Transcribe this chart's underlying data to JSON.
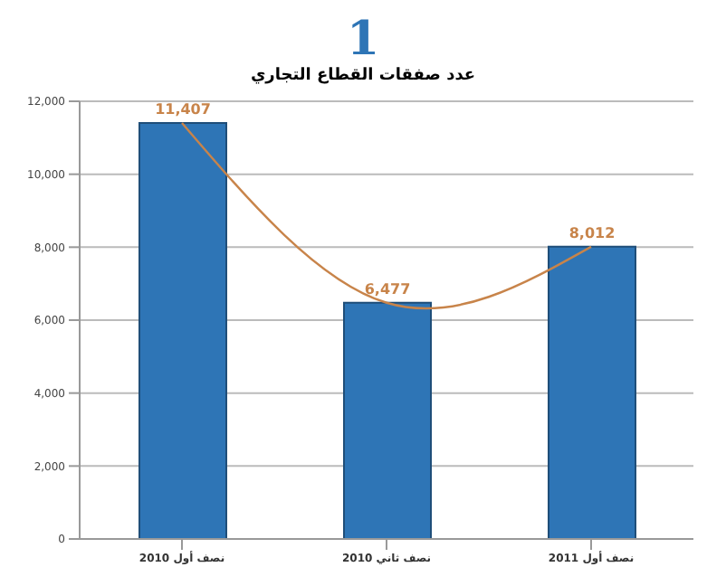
{
  "chart_data": {
    "type": "bar",
    "title": "1",
    "subtitle": "عدد صفقات القطاع التجاري",
    "categories": [
      "نصف أول 2010",
      "نصف ثاني 2010",
      "نصف أول 2011"
    ],
    "series": [
      {
        "color": "#2e75b6",
        "values": [
          11407,
          6477,
          8012
        ],
        "value_labels": [
          "11,407",
          "6,477",
          "8,012"
        ]
      },
      {
        "type": "line",
        "color": "#c8844a",
        "values": [
          11407,
          6477,
          8012
        ]
      }
    ],
    "ylim": [
      0,
      12000
    ],
    "yticks": [
      0,
      {
        "value": 2000,
        "label": "2,000"
      },
      {
        "value": 4000,
        "label": "4,000"
      },
      {
        "value": 6000,
        "label": "6,000"
      },
      {
        "value": 8000,
        "label": "8,000"
      },
      {
        "value": 10000,
        "label": "10,000"
      },
      {
        "value": 12000,
        "label": "12,000"
      }
    ],
    "grid": "y",
    "legend": false,
    "marker": "none"
  }
}
